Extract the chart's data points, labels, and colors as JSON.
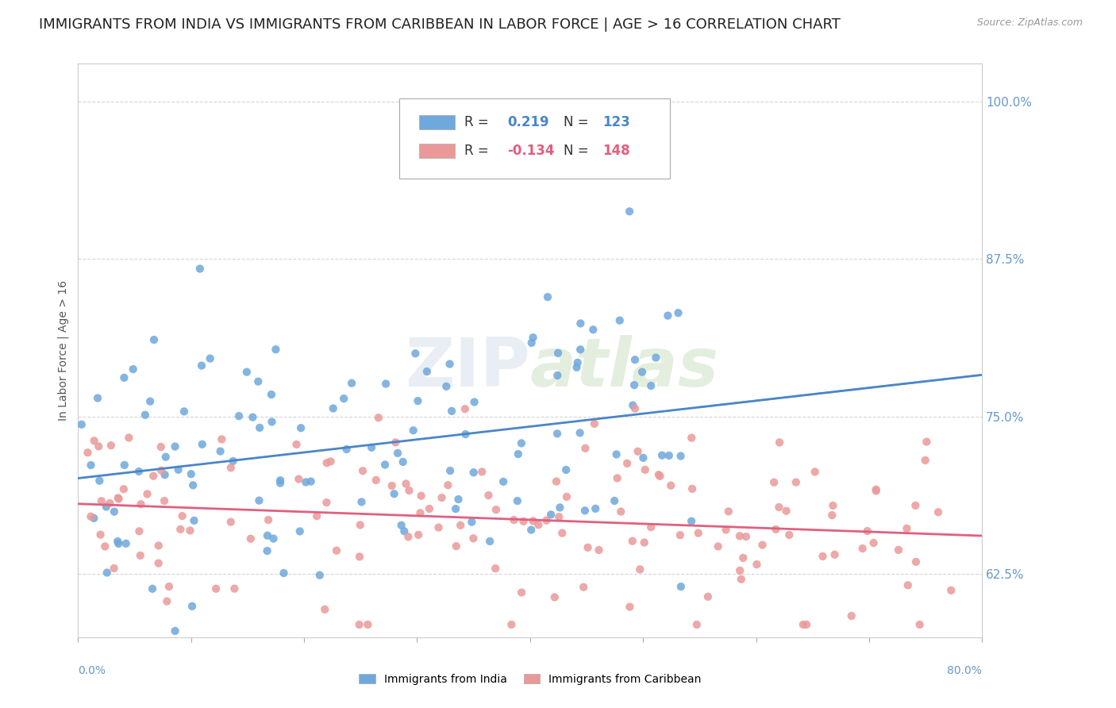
{
  "title": "IMMIGRANTS FROM INDIA VS IMMIGRANTS FROM CARIBBEAN IN LABOR FORCE | AGE > 16 CORRELATION CHART",
  "source": "Source: ZipAtlas.com",
  "ylabel": "In Labor Force | Age > 16",
  "yticks": [
    0.625,
    0.75,
    0.875,
    1.0
  ],
  "ytick_labels": [
    "62.5%",
    "75.0%",
    "87.5%",
    "100.0%"
  ],
  "xlim": [
    0.0,
    0.8
  ],
  "ylim": [
    0.575,
    1.03
  ],
  "india_color": "#6fa8dc",
  "caribbean_color": "#ea9999",
  "india_line_color": "#4a86c8",
  "caribbean_line_color": "#e06080",
  "india_R": 0.219,
  "india_N": 123,
  "caribbean_R": -0.134,
  "caribbean_N": 148,
  "grid_color": "#cccccc",
  "background_color": "#ffffff",
  "title_fontsize": 13,
  "axis_label_fontsize": 10,
  "right_label_color": "#6699cc"
}
